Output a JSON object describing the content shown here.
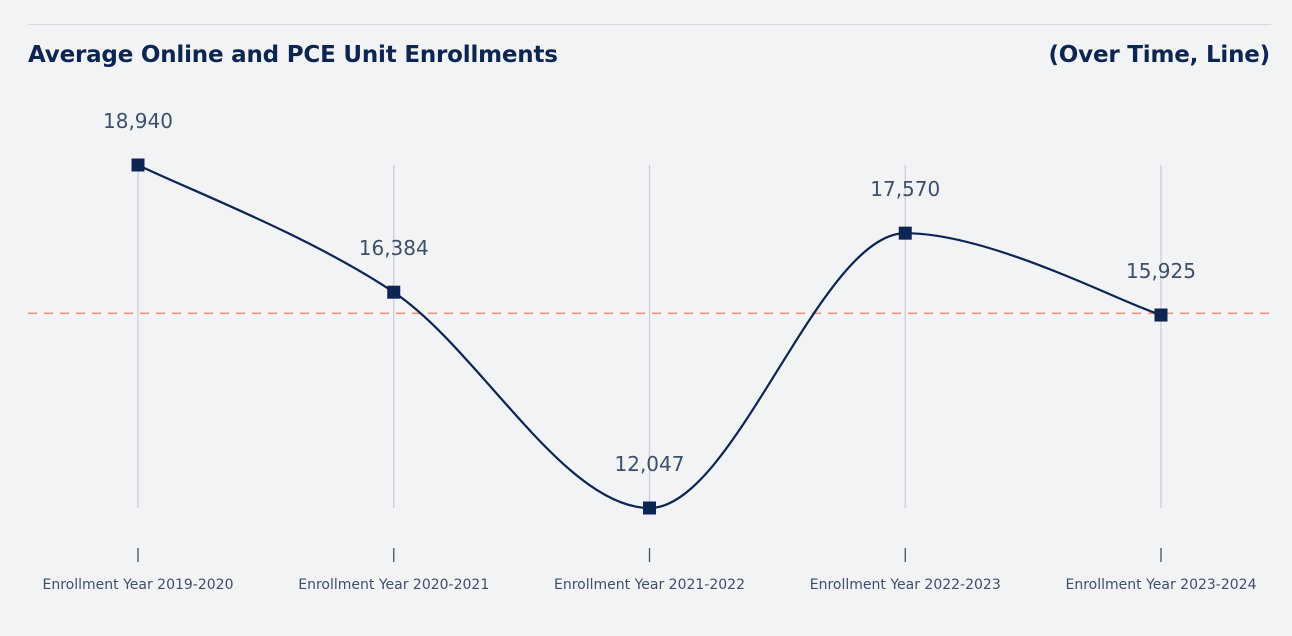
{
  "header": {
    "title": "Average Online and PCE Unit Enrollments",
    "subtitle": "(Over Time, Line)"
  },
  "chart_data": {
    "type": "line",
    "title": "Average Online and PCE Unit Enrollments",
    "subtitle": "(Over Time, Line)",
    "categories": [
      "Enrollment Year 2019-2020",
      "Enrollment Year 2020-2021",
      "Enrollment Year 2021-2022",
      "Enrollment Year 2022-2023",
      "Enrollment Year 2023-2024"
    ],
    "series": [
      {
        "name": "Average Online and PCE Unit Enrollments",
        "values": [
          18940,
          16384,
          12047,
          17570,
          15925
        ],
        "labels": [
          "18,940",
          "16,384",
          "12,047",
          "17,570",
          "15,925"
        ],
        "color": "#0d2552"
      }
    ],
    "reference_line": {
      "value": 15960,
      "color": "#f0917c",
      "style": "dashed"
    },
    "xlabel": "",
    "ylabel": "",
    "ylim": [
      12047,
      18940
    ],
    "grid": "vertical",
    "marker": "square",
    "curve": "smooth"
  }
}
